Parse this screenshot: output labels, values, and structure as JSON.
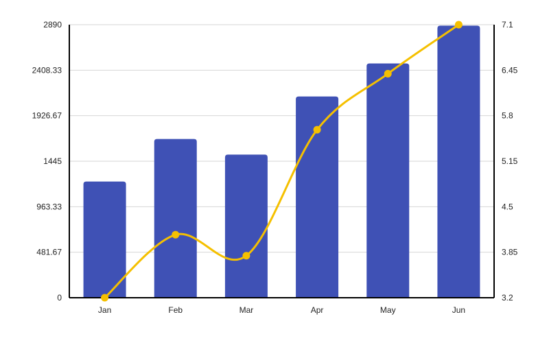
{
  "chart_data": {
    "type": "bar",
    "categories": [
      "Jan",
      "Feb",
      "Mar",
      "Apr",
      "May",
      "Jun"
    ],
    "series": [
      {
        "type": "bar",
        "axis": "left",
        "color": "#3f51b5",
        "values": [
          1230,
          1680,
          1515,
          2130,
          2480,
          2880
        ]
      },
      {
        "type": "line",
        "axis": "right",
        "smooth": true,
        "color": "#f5c000",
        "values": [
          3.2,
          4.1,
          3.8,
          5.6,
          6.4,
          7.1
        ]
      }
    ],
    "y_left": {
      "ylim": [
        0,
        2890
      ],
      "ticks": [
        "0",
        "481.67",
        "963.33",
        "1445",
        "1926.67",
        "2408.33",
        "2890"
      ]
    },
    "y_right": {
      "ylim": [
        3.2,
        7.1
      ],
      "ticks": [
        "3.2",
        "3.85",
        "4.5",
        "5.15",
        "5.8",
        "6.45",
        "7.1"
      ]
    },
    "grid": true,
    "legend": "none"
  }
}
